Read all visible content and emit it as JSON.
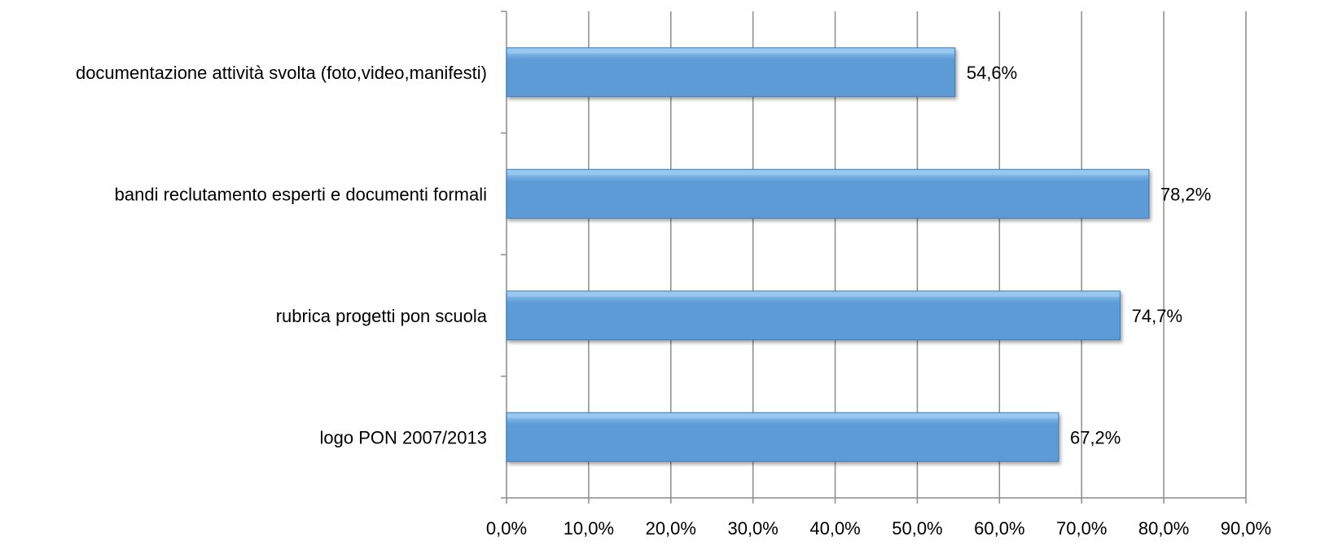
{
  "chart_data": {
    "type": "bar",
    "orientation": "horizontal",
    "categories": [
      "documentazione attività svolta (foto,video,manifesti)",
      "bandi reclutamento esperti e documenti formali",
      "rubrica progetti pon scuola",
      "logo PON  2007/2013"
    ],
    "values": [
      54.6,
      78.2,
      74.7,
      67.2
    ],
    "value_labels": [
      "54,6%",
      "78,2%",
      "74,7%",
      "67,2%"
    ],
    "xlim": [
      0,
      90
    ],
    "x_ticks": [
      0,
      10,
      20,
      30,
      40,
      50,
      60,
      70,
      80,
      90
    ],
    "x_tick_labels": [
      "0,0%",
      "10,0%",
      "20,0%",
      "30,0%",
      "40,0%",
      "50,0%",
      "60,0%",
      "70,0%",
      "80,0%",
      "90,0%"
    ],
    "title": "",
    "xlabel": "",
    "ylabel": "",
    "grid": true,
    "legend": "none",
    "bar_color": "#5b9bd5",
    "bar_top_color": "#9ccaf0",
    "bar_edge_color": "#3d7ab8",
    "grid_color": "#8c8c8c"
  }
}
